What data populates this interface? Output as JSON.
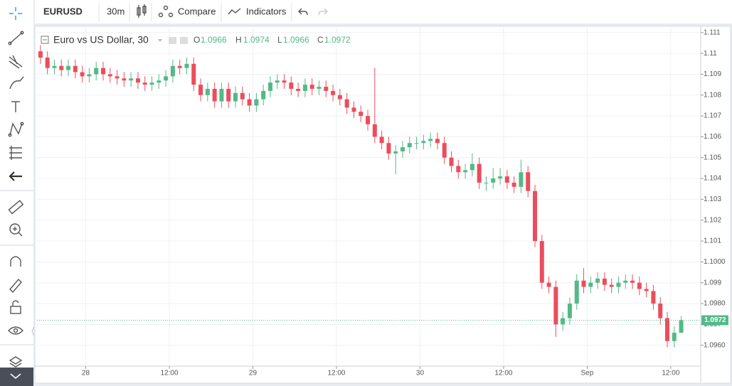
{
  "toolbar": {
    "symbol": "EURUSD",
    "interval": "30m",
    "compare": "Compare",
    "indicators": "Indicators"
  },
  "legend": {
    "title": "Euro vs US Dollar, 30",
    "o_label": "O",
    "o": "1.0966",
    "h_label": "H",
    "h": "1.0974",
    "l_label": "L",
    "l": "1.0966",
    "c_label": "C",
    "c": "1.0972"
  },
  "chart_data": {
    "type": "candlestick",
    "up_color": "#53b987",
    "down_color": "#eb4d5c",
    "grid": true,
    "x": [
      -6.5,
      -5.5,
      -4.5,
      -3.5,
      -2.5,
      -1.5,
      -0.5,
      0.5,
      1.5,
      2.5,
      3.5,
      4.5,
      5.5,
      6.5,
      7.5,
      8.5,
      9.5,
      10.5,
      11.5,
      12.5,
      13.5,
      14.5,
      15.5,
      16.5,
      17.5,
      18.5,
      19.5,
      20.5,
      21.5,
      22.5,
      23.5,
      24.5,
      25.5,
      26.5,
      27.5,
      28.5,
      29.5,
      30.5,
      31.5,
      32.5,
      33.5,
      34.5,
      35.5,
      36.5,
      37.5,
      38.5,
      39.5,
      40.5,
      41.5,
      42.5,
      43.5,
      44.5,
      45.5,
      46.5,
      47.5,
      48.5,
      49.5,
      50.5,
      51.5,
      52.5,
      53.5,
      54.5,
      55.5,
      56.5,
      57.5,
      58.5,
      59.5,
      60.5,
      61.5,
      62.5,
      63.5,
      64.5,
      65.5,
      66.5,
      67.5,
      68.5,
      69.5,
      70.5,
      71.5,
      72.5,
      73.5,
      74.5,
      75.5,
      76.5,
      77.5,
      78.5,
      79.5,
      80.5,
      81.5,
      82.5,
      83.5,
      84.5,
      85.5
    ],
    "open": [
      1.1101,
      1.1098,
      1.1093,
      1.1094,
      1.1092,
      1.1094,
      1.1091,
      1.1089,
      1.109,
      1.1093,
      1.109,
      1.1089,
      1.1088,
      1.1087,
      1.1088,
      1.1086,
      1.1085,
      1.1086,
      1.1087,
      1.1089,
      1.1094,
      1.1093,
      1.1095,
      1.1085,
      1.108,
      1.1083,
      1.1077,
      1.1083,
      1.1077,
      1.1081,
      1.1078,
      1.1075,
      1.1078,
      1.1082,
      1.1086,
      1.1087,
      1.1086,
      1.1083,
      1.1082,
      1.1085,
      1.1083,
      1.1084,
      1.1082,
      1.108,
      1.1078,
      1.1074,
      1.1072,
      1.107,
      1.1066,
      1.106,
      1.1057,
      1.1052,
      1.1053,
      1.1055,
      1.1057,
      1.1057,
      1.1058,
      1.1059,
      1.1057,
      1.105,
      1.1046,
      1.1043,
      1.1044,
      1.1047,
      1.1038,
      1.1038,
      1.104,
      1.1041,
      1.1038,
      1.1036,
      1.1043,
      1.1034,
      1.101,
      1.099,
      1.0988,
      1.097,
      1.0973,
      1.098,
      1.0991,
      1.0988,
      1.099,
      1.0992,
      1.0989,
      1.0988,
      1.099,
      1.0991,
      1.099,
      1.0987,
      1.0986,
      1.098,
      1.0973,
      1.0962,
      1.0966
    ],
    "high": [
      1.1104,
      1.1101,
      1.1097,
      1.1097,
      1.1097,
      1.1097,
      1.1094,
      1.1093,
      1.1096,
      1.1096,
      1.1093,
      1.1092,
      1.1091,
      1.1091,
      1.1091,
      1.1089,
      1.1089,
      1.109,
      1.1092,
      1.1097,
      1.1097,
      1.1098,
      1.1098,
      1.1088,
      1.1086,
      1.1086,
      1.1086,
      1.1086,
      1.1084,
      1.1084,
      1.1081,
      1.1081,
      1.1085,
      1.1089,
      1.109,
      1.109,
      1.1089,
      1.1086,
      1.1088,
      1.1088,
      1.1087,
      1.1087,
      1.1085,
      1.1083,
      1.1081,
      1.1077,
      1.1075,
      1.1073,
      1.1093,
      1.1063,
      1.106,
      1.1056,
      1.1058,
      1.106,
      1.106,
      1.1061,
      1.1062,
      1.1062,
      1.106,
      1.1053,
      1.1049,
      1.1047,
      1.1052,
      1.105,
      1.1041,
      1.1045,
      1.1045,
      1.1044,
      1.1041,
      1.1049,
      1.1046,
      1.1037,
      1.1013,
      1.0993,
      1.0991,
      1.0976,
      1.0983,
      1.0994,
      1.0997,
      1.0993,
      1.0995,
      1.0995,
      1.0992,
      1.0993,
      1.0994,
      1.0994,
      1.0993,
      1.099,
      1.0989,
      1.0983,
      1.0976,
      1.0969,
      1.0974
    ],
    "low": [
      1.1095,
      1.109,
      1.109,
      1.1089,
      1.1089,
      1.1088,
      1.1086,
      1.1086,
      1.1087,
      1.1087,
      1.1086,
      1.1085,
      1.1084,
      1.1084,
      1.1083,
      1.1082,
      1.1082,
      1.1083,
      1.1084,
      1.1086,
      1.109,
      1.109,
      1.1082,
      1.1077,
      1.1077,
      1.1074,
      1.1074,
      1.1074,
      1.1074,
      1.1075,
      1.1072,
      1.1072,
      1.1075,
      1.1079,
      1.1083,
      1.1083,
      1.108,
      1.1079,
      1.1079,
      1.108,
      1.108,
      1.1079,
      1.1077,
      1.1075,
      1.1071,
      1.1069,
      1.1067,
      1.1063,
      1.1057,
      1.1054,
      1.1049,
      1.1042,
      1.105,
      1.1052,
      1.1054,
      1.1054,
      1.1055,
      1.1054,
      1.1047,
      1.1043,
      1.104,
      1.104,
      1.1041,
      1.1035,
      1.1034,
      1.1035,
      1.1037,
      1.1035,
      1.1033,
      1.1033,
      1.1031,
      1.1007,
      1.0987,
      1.0985,
      1.0964,
      1.0967,
      1.097,
      1.0977,
      1.0985,
      1.0985,
      1.0987,
      1.0986,
      1.0985,
      1.0985,
      1.0987,
      1.0987,
      1.0984,
      1.0983,
      1.0977,
      1.097,
      1.0959,
      1.0959,
      1.0966
    ],
    "close": [
      1.1098,
      1.1093,
      1.1094,
      1.1092,
      1.1094,
      1.1091,
      1.1089,
      1.109,
      1.1093,
      1.109,
      1.1089,
      1.1088,
      1.1087,
      1.1088,
      1.1086,
      1.1085,
      1.1086,
      1.1087,
      1.1089,
      1.1094,
      1.1093,
      1.1095,
      1.1085,
      1.108,
      1.1083,
      1.1077,
      1.1083,
      1.1077,
      1.1081,
      1.1078,
      1.1075,
      1.1078,
      1.1082,
      1.1086,
      1.1087,
      1.1086,
      1.1083,
      1.1082,
      1.1085,
      1.1083,
      1.1084,
      1.1082,
      1.108,
      1.1078,
      1.1074,
      1.1072,
      1.107,
      1.1066,
      1.106,
      1.1057,
      1.1052,
      1.1053,
      1.1055,
      1.1057,
      1.1057,
      1.1058,
      1.1059,
      1.1057,
      1.105,
      1.1046,
      1.1043,
      1.1044,
      1.1047,
      1.1038,
      1.1038,
      1.104,
      1.1041,
      1.1038,
      1.1036,
      1.1043,
      1.1034,
      1.101,
      1.099,
      1.0988,
      1.097,
      1.0973,
      1.098,
      1.0991,
      1.0988,
      1.099,
      1.0992,
      1.0989,
      1.0988,
      1.099,
      1.0991,
      1.099,
      1.0987,
      1.0986,
      1.098,
      1.0973,
      1.0962,
      1.0966,
      1.0972
    ],
    "xlim": [
      -7,
      88.3
    ],
    "xticks": [
      {
        "value": 0,
        "label": "28"
      },
      {
        "value": 12,
        "label": "12:00"
      },
      {
        "value": 24,
        "label": "29"
      },
      {
        "value": 36,
        "label": "12:00"
      },
      {
        "value": 48,
        "label": "30"
      },
      {
        "value": 60,
        "label": "12:00"
      },
      {
        "value": 72,
        "label": "Sep"
      },
      {
        "value": 84,
        "label": "12:00"
      }
    ],
    "ylim": [
      1.095,
      1.1113
    ],
    "yticks": [
      {
        "value": 1.096,
        "label": "1.0960"
      },
      1.097,
      {
        "value": 1.098,
        "label": "1.0980"
      },
      1.099,
      {
        "value": 1.1,
        "label": "1.1000"
      },
      1.101,
      1.102,
      1.103,
      1.104,
      1.105,
      1.106,
      1.107,
      1.108,
      1.109,
      1.11,
      1.111
    ],
    "last_price": 1.0972
  }
}
